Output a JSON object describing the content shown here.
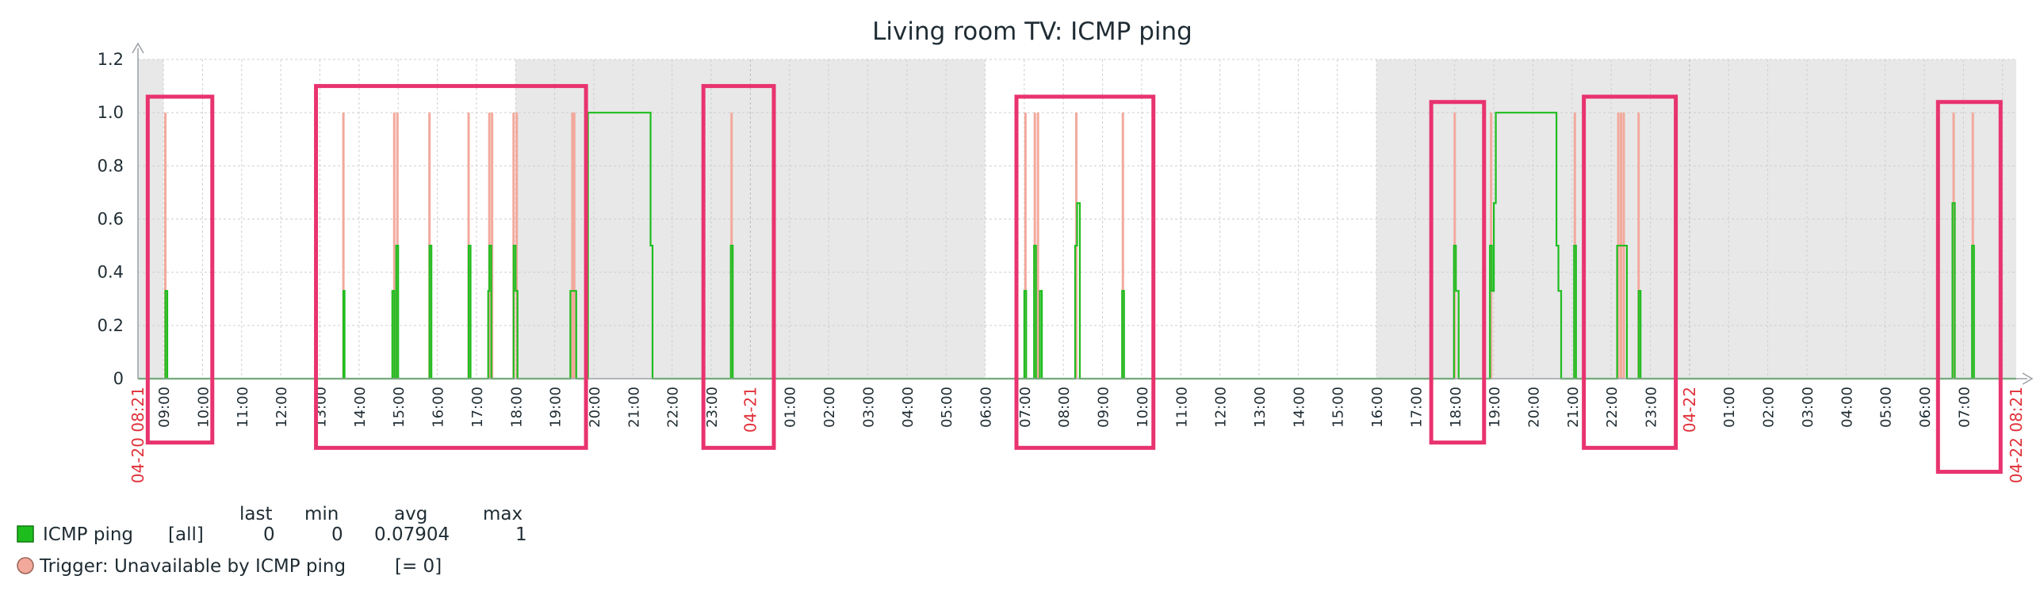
{
  "colors": {
    "series": "#1ebd1e",
    "trigger": "#f2a99c",
    "trigger_marker_border": "#b0705f",
    "highlight_box": "#e8336e",
    "shade": "#e8e8e8",
    "grid": "#cfcfcf",
    "red_label": "#e0323a"
  },
  "chart_data": {
    "type": "line",
    "title": "Living room TV: ICMP ping",
    "yticks": [
      "0",
      "0.2",
      "0.4",
      "0.6",
      "0.8",
      "1.0",
      "1.2"
    ],
    "ylim": [
      0,
      1.2
    ],
    "xlim_hours": [
      8.35,
      56.35
    ],
    "x_tick_labels": [
      "09:00",
      "10:00",
      "11:00",
      "12:00",
      "13:00",
      "14:00",
      "15:00",
      "16:00",
      "17:00",
      "18:00",
      "19:00",
      "20:00",
      "21:00",
      "22:00",
      "23:00",
      "04-21",
      "01:00",
      "02:00",
      "03:00",
      "04:00",
      "05:00",
      "06:00",
      "07:00",
      "08:00",
      "09:00",
      "10:00",
      "11:00",
      "12:00",
      "13:00",
      "14:00",
      "15:00",
      "16:00",
      "17:00",
      "18:00",
      "19:00",
      "20:00",
      "21:00",
      "22:00",
      "23:00",
      "04-22",
      "01:00",
      "02:00",
      "03:00",
      "04:00",
      "05:00",
      "06:00",
      "07:00"
    ],
    "x_start_label": "04-20 08:21",
    "x_end_label": "04-22 08:21",
    "shaded_hour_ranges": [
      [
        8.35,
        9.0
      ],
      [
        18.0,
        30.0
      ],
      [
        40.0,
        56.35
      ]
    ],
    "series": [
      {
        "name": "ICMP ping",
        "points": [
          [
            8.35,
            0
          ],
          [
            9.05,
            0
          ],
          [
            9.05,
            0.33
          ],
          [
            9.1,
            0.33
          ],
          [
            9.1,
            0
          ],
          [
            13.6,
            0
          ],
          [
            13.6,
            0.33
          ],
          [
            13.63,
            0.33
          ],
          [
            13.63,
            0
          ],
          [
            14.85,
            0
          ],
          [
            14.85,
            0.33
          ],
          [
            14.9,
            0.33
          ],
          [
            14.9,
            0
          ],
          [
            14.95,
            0
          ],
          [
            14.95,
            0.5
          ],
          [
            15.0,
            0.5
          ],
          [
            15.0,
            0
          ],
          [
            15.8,
            0
          ],
          [
            15.8,
            0.5
          ],
          [
            15.85,
            0.5
          ],
          [
            15.85,
            0
          ],
          [
            16.8,
            0
          ],
          [
            16.8,
            0.5
          ],
          [
            16.85,
            0.5
          ],
          [
            16.85,
            0
          ],
          [
            17.3,
            0
          ],
          [
            17.3,
            0.33
          ],
          [
            17.33,
            0.33
          ],
          [
            17.33,
            0.5
          ],
          [
            17.38,
            0.5
          ],
          [
            17.38,
            0
          ],
          [
            17.95,
            0
          ],
          [
            17.95,
            0.5
          ],
          [
            18.0,
            0.5
          ],
          [
            18.0,
            0.33
          ],
          [
            18.05,
            0.33
          ],
          [
            18.05,
            0
          ],
          [
            19.4,
            0
          ],
          [
            19.4,
            0.33
          ],
          [
            19.55,
            0.33
          ],
          [
            19.55,
            0
          ],
          [
            19.85,
            0
          ],
          [
            19.85,
            1.0
          ],
          [
            21.45,
            1.0
          ],
          [
            21.45,
            0.5
          ],
          [
            21.5,
            0.5
          ],
          [
            21.5,
            0
          ],
          [
            23.5,
            0
          ],
          [
            23.5,
            0.5
          ],
          [
            23.55,
            0.5
          ],
          [
            23.55,
            0
          ],
          [
            31.0,
            0
          ],
          [
            31.0,
            0.33
          ],
          [
            31.05,
            0.33
          ],
          [
            31.05,
            0
          ],
          [
            31.25,
            0
          ],
          [
            31.25,
            0.5
          ],
          [
            31.3,
            0.5
          ],
          [
            31.3,
            0
          ],
          [
            31.4,
            0
          ],
          [
            31.4,
            0.33
          ],
          [
            31.45,
            0.33
          ],
          [
            31.45,
            0
          ],
          [
            32.3,
            0
          ],
          [
            32.3,
            0.5
          ],
          [
            32.35,
            0.5
          ],
          [
            32.35,
            0.66
          ],
          [
            32.42,
            0.66
          ],
          [
            32.42,
            0
          ],
          [
            33.5,
            0
          ],
          [
            33.5,
            0.33
          ],
          [
            33.55,
            0.33
          ],
          [
            33.55,
            0
          ],
          [
            41.98,
            0
          ],
          [
            41.98,
            0.5
          ],
          [
            42.03,
            0.5
          ],
          [
            42.03,
            0.33
          ],
          [
            42.1,
            0.33
          ],
          [
            42.1,
            0
          ],
          [
            42.9,
            0
          ],
          [
            42.9,
            0.5
          ],
          [
            42.95,
            0.5
          ],
          [
            42.95,
            0.33
          ],
          [
            43.0,
            0.33
          ],
          [
            43.0,
            0.66
          ],
          [
            43.05,
            0.66
          ],
          [
            43.05,
            1.0
          ],
          [
            44.6,
            1.0
          ],
          [
            44.6,
            0.5
          ],
          [
            44.65,
            0.5
          ],
          [
            44.65,
            0.33
          ],
          [
            44.72,
            0.33
          ],
          [
            44.72,
            0
          ],
          [
            45.05,
            0
          ],
          [
            45.05,
            0.5
          ],
          [
            45.1,
            0.5
          ],
          [
            45.1,
            0
          ],
          [
            46.15,
            0
          ],
          [
            46.15,
            0.5
          ],
          [
            46.4,
            0.5
          ],
          [
            46.4,
            0
          ],
          [
            46.7,
            0
          ],
          [
            46.7,
            0.33
          ],
          [
            46.75,
            0.33
          ],
          [
            46.75,
            0
          ],
          [
            54.72,
            0
          ],
          [
            54.72,
            0.66
          ],
          [
            54.78,
            0.66
          ],
          [
            54.78,
            0
          ],
          [
            55.22,
            0
          ],
          [
            55.22,
            0.5
          ],
          [
            55.27,
            0.5
          ],
          [
            55.27,
            0
          ],
          [
            56.35,
            0
          ]
        ]
      }
    ],
    "trigger_spikes_hours": [
      9.05,
      13.6,
      14.9,
      14.98,
      15.8,
      16.8,
      17.33,
      17.4,
      17.95,
      18.03,
      19.45,
      19.5,
      23.52,
      31.03,
      31.27,
      31.35,
      32.33,
      33.52,
      42.0,
      42.93,
      45.07,
      46.18,
      46.25,
      46.32,
      46.7,
      54.75,
      55.24
    ],
    "highlight_boxes_hours": [
      {
        "x": [
          8.6,
          10.25
        ],
        "y": [
          1.06,
          -0.24
        ]
      },
      {
        "x": [
          12.9,
          19.8
        ],
        "y": [
          1.1,
          -0.26
        ]
      },
      {
        "x": [
          22.8,
          24.6
        ],
        "y": [
          1.1,
          -0.26
        ]
      },
      {
        "x": [
          30.8,
          34.3
        ],
        "y": [
          1.06,
          -0.26
        ]
      },
      {
        "x": [
          41.4,
          42.75
        ],
        "y": [
          1.04,
          -0.24
        ]
      },
      {
        "x": [
          45.3,
          47.65
        ],
        "y": [
          1.06,
          -0.26
        ]
      },
      {
        "x": [
          54.35,
          55.95
        ],
        "y": [
          1.04,
          -0.35
        ]
      }
    ]
  },
  "legend": {
    "headers": {
      "last": "last",
      "min": "min",
      "avg": "avg",
      "max": "max"
    },
    "series_name": "ICMP ping",
    "series_func": "[all]",
    "last": "0",
    "min": "0",
    "avg": "0.07904",
    "max": "1",
    "trigger_label": "Trigger: Unavailable by ICMP ping",
    "trigger_cond": "[= 0]"
  }
}
